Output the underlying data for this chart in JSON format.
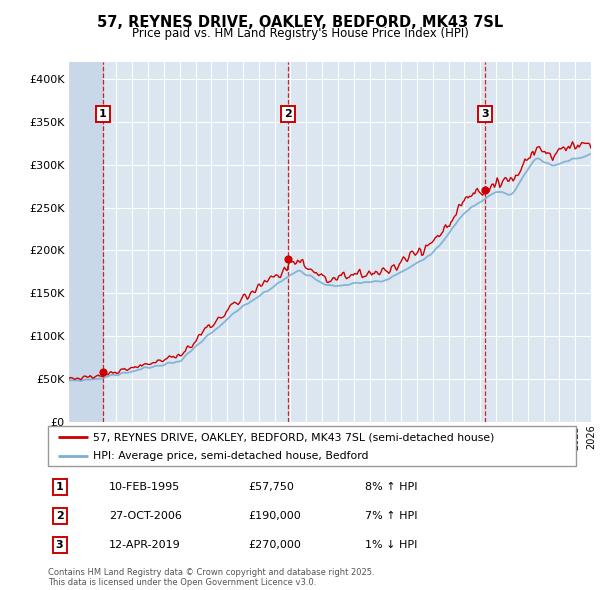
{
  "title": "57, REYNES DRIVE, OAKLEY, BEDFORD, MK43 7SL",
  "subtitle": "Price paid vs. HM Land Registry's House Price Index (HPI)",
  "hpi_color": "#7bafd4",
  "price_color": "#cc0000",
  "dot_color": "#cc0000",
  "vline_color": "#cc0000",
  "bg_color": "#dce6f1",
  "ylim": [
    0,
    420000
  ],
  "yticks": [
    0,
    50000,
    100000,
    150000,
    200000,
    250000,
    300000,
    350000,
    400000
  ],
  "ytick_labels": [
    "£0",
    "£50K",
    "£100K",
    "£150K",
    "£200K",
    "£250K",
    "£300K",
    "£350K",
    "£400K"
  ],
  "sale1": {
    "date_num": 1995.12,
    "price": 57750,
    "label": "1",
    "hpi_pct": "8% ↑ HPI",
    "date_str": "10-FEB-1995",
    "price_str": "£57,750"
  },
  "sale2": {
    "date_num": 2006.83,
    "price": 190000,
    "label": "2",
    "hpi_pct": "7% ↑ HPI",
    "date_str": "27-OCT-2006",
    "price_str": "£190,000"
  },
  "sale3": {
    "date_num": 2019.28,
    "price": 270000,
    "label": "3",
    "hpi_pct": "1% ↓ HPI",
    "date_str": "12-APR-2019",
    "price_str": "£270,000"
  },
  "legend1": "57, REYNES DRIVE, OAKLEY, BEDFORD, MK43 7SL (semi-detached house)",
  "legend2": "HPI: Average price, semi-detached house, Bedford",
  "footnote": "Contains HM Land Registry data © Crown copyright and database right 2025.\nThis data is licensed under the Open Government Licence v3.0.",
  "xstart": 1993,
  "xend": 2026
}
